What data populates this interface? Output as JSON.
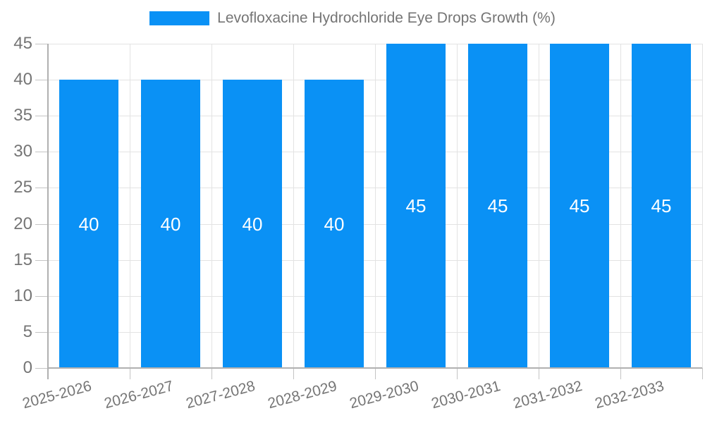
{
  "chart_data": {
    "type": "bar",
    "title": "Levofloxacine Hydrochloride Eye Drops Growth (%)",
    "categories": [
      "2025-2026",
      "2026-2027",
      "2027-2028",
      "2028-2029",
      "2029-2030",
      "2030-2031",
      "2031-2032",
      "2032-2033"
    ],
    "values": [
      40,
      40,
      40,
      40,
      45,
      45,
      45,
      45
    ],
    "xlabel": "",
    "ylabel": "",
    "ylim": [
      0,
      45
    ],
    "yticks": [
      0,
      5,
      10,
      15,
      20,
      25,
      30,
      35,
      40,
      45
    ],
    "grid": true,
    "legend_position": "top-center",
    "value_labels_shown": true,
    "xtick_rotation_deg": -15
  },
  "colors": {
    "bar": "#0a91f5",
    "text": "#757575",
    "grid": "#e3e3e3",
    "axis": "#b0b0b0",
    "tick": "#c4c4c4",
    "value_label": "#ffffff",
    "background": "#ffffff"
  }
}
